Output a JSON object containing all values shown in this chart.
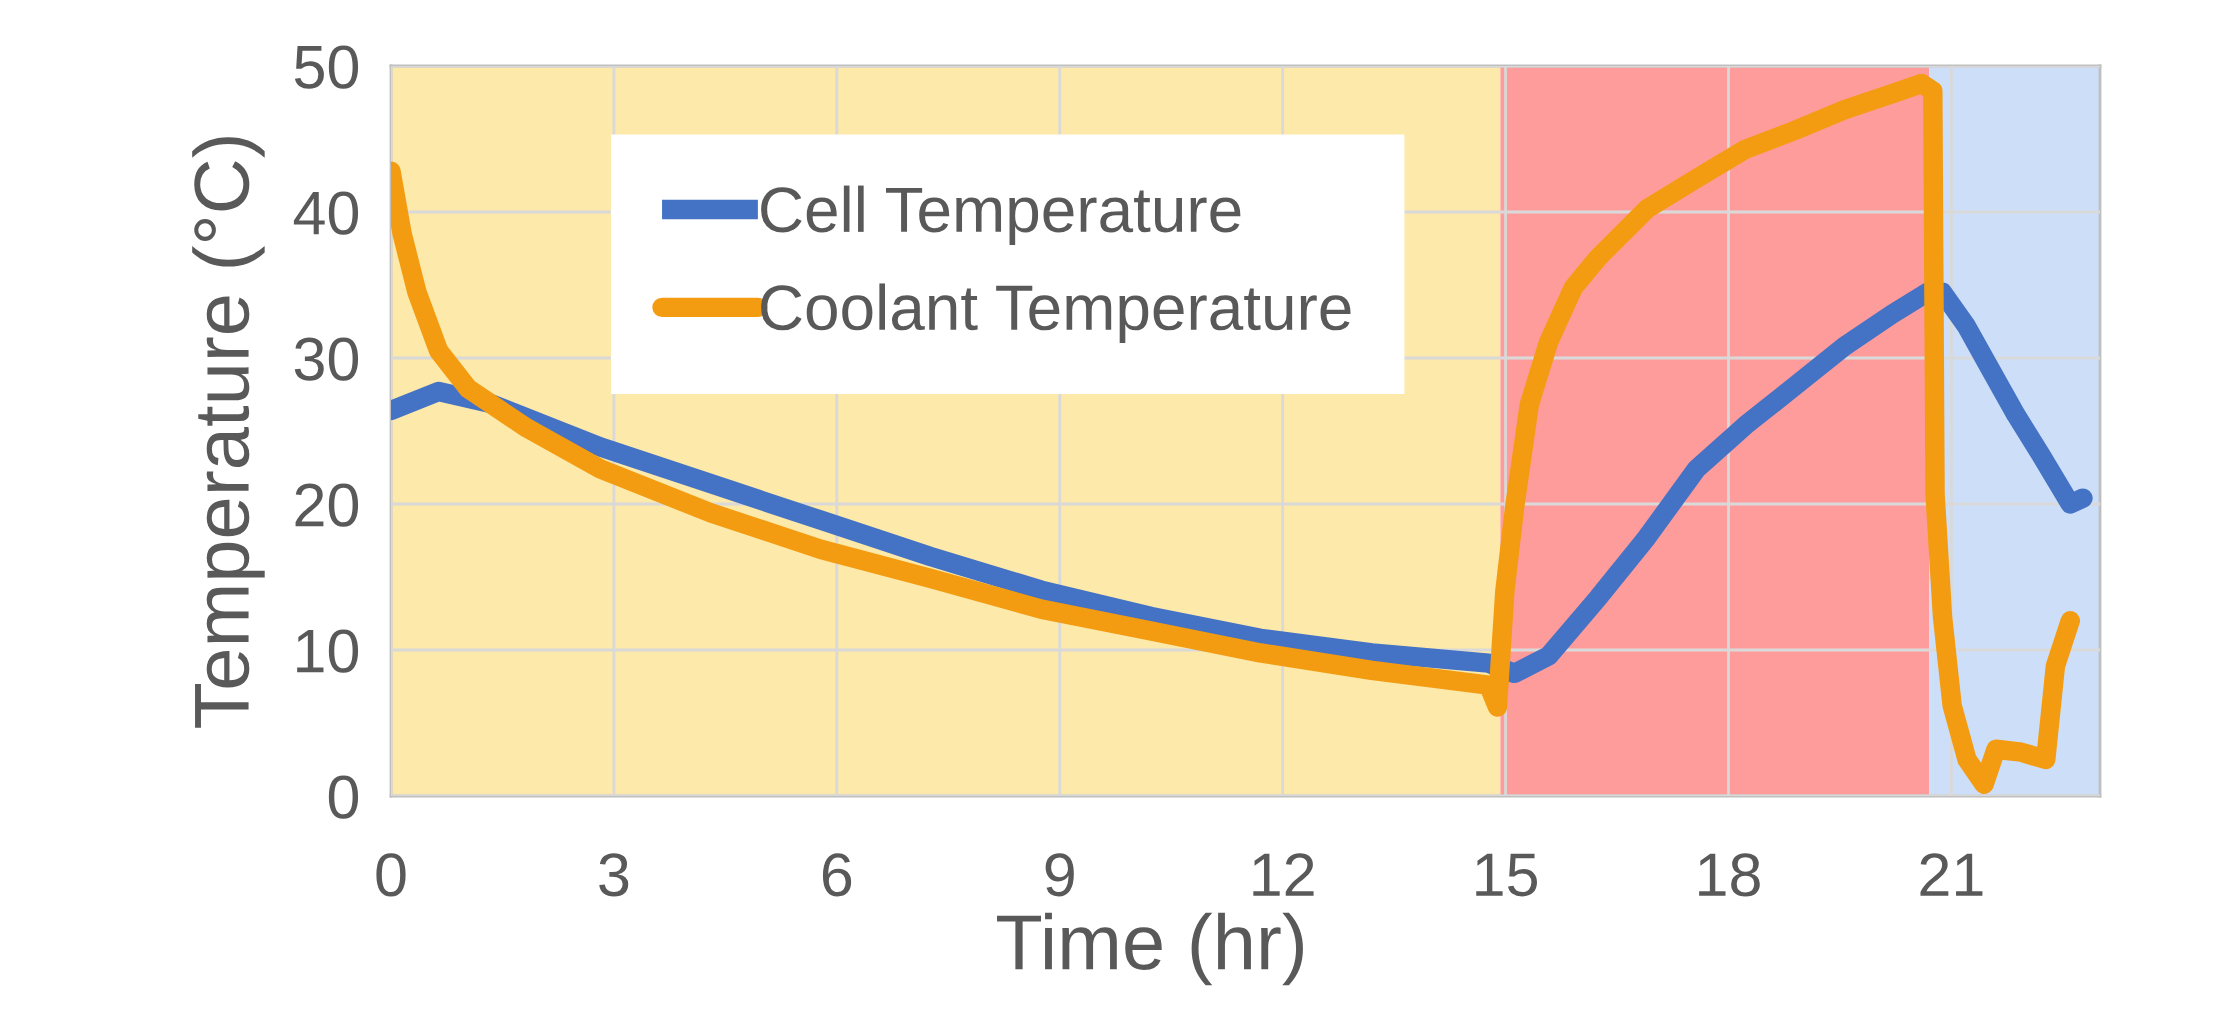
{
  "chart_data": {
    "type": "line",
    "xlabel": "Time (hr)",
    "ylabel": "Temperature (°C)",
    "xlim": [
      0,
      23
    ],
    "xticks": [
      0,
      3,
      6,
      9,
      12,
      15,
      18,
      21
    ],
    "ylim": [
      0,
      50
    ],
    "yticks": [
      0,
      10,
      20,
      30,
      40,
      50
    ],
    "grid": true,
    "legend": "top left",
    "line_style": "solid",
    "bands": [
      {
        "axis": "x",
        "from": 0,
        "to": 14.93,
        "label": null,
        "color": "#fde9a9"
      },
      {
        "axis": "x",
        "from": 14.93,
        "to": 20.7,
        "label": null,
        "color": "#fe9c9c"
      },
      {
        "axis": "x",
        "from": 20.7,
        "to": 23,
        "label": null,
        "color": "#cddff8"
      }
    ],
    "series": [
      {
        "name": "Cell Temperature",
        "color": "#4472c4",
        "x": [
          0,
          0.64,
          1.33,
          2.82,
          4.3,
          5.78,
          7.26,
          8.75,
          10.23,
          11.7,
          13.2,
          14.77,
          15.12,
          15.58,
          16.25,
          16.9,
          17.57,
          18.23,
          18.9,
          19.56,
          20.2,
          20.68,
          20.88,
          21.2,
          21.54,
          21.87,
          22.2,
          22.6,
          22.77
        ],
        "values": [
          26.4,
          27.7,
          26.9,
          23.9,
          21.4,
          18.9,
          16.4,
          14.1,
          12.3,
          10.8,
          9.8,
          9.1,
          8.4,
          9.6,
          13.6,
          17.7,
          22.4,
          25.4,
          28.1,
          30.8,
          33,
          34.5,
          34.5,
          32.2,
          29.1,
          26.1,
          23.4,
          20,
          20.4
        ]
      },
      {
        "name": "Coolant Temperature",
        "color": "#f39c12",
        "x": [
          0,
          0.15,
          0.35,
          0.64,
          1.04,
          1.83,
          2.82,
          4.3,
          5.78,
          7.26,
          8.75,
          10.23,
          11.7,
          13.2,
          14.77,
          14.89,
          14.99,
          15.12,
          15.32,
          15.58,
          15.91,
          16.25,
          16.9,
          17.57,
          18.23,
          18.9,
          19.56,
          20.2,
          20.6,
          20.75,
          20.78,
          20.88,
          21.01,
          21.21,
          21.44,
          21.6,
          21.94,
          22.27,
          22.4,
          22.6
        ],
        "values": [
          42.8,
          38.5,
          34.5,
          30.5,
          27.9,
          25.2,
          22.4,
          19.4,
          16.9,
          14.9,
          12.8,
          11.3,
          9.8,
          8.6,
          7.6,
          6.1,
          14,
          19.7,
          26.8,
          31.1,
          34.8,
          36.9,
          40.2,
          42.3,
          44.3,
          45.6,
          47,
          48.1,
          48.8,
          48.3,
          20.7,
          12.3,
          6.2,
          2.5,
          0.8,
          3.2,
          3.0,
          2.5,
          8.9,
          12
        ]
      }
    ]
  }
}
